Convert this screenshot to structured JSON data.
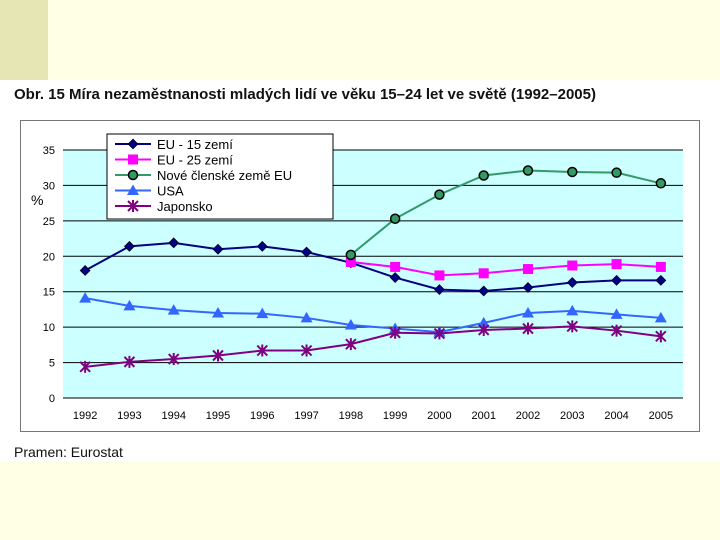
{
  "page": {
    "title": "Obr. 15 Míra nezaměstnanosti mladých lidí ve věku 15–24 let ve světě (1992–2005)",
    "source": "Pramen: Eurostat"
  },
  "colors": {
    "background": "#ffffe6",
    "accent": "#e6e6b4",
    "plot_bg": "#ccffff"
  },
  "chart_data": {
    "type": "line",
    "title": "Obr. 15 Míra nezaměstnanosti mladých lidí ve věku 15–24 let ve světě (1992–2005)",
    "xlabel": "",
    "ylabel": "%",
    "ylim": [
      0,
      35
    ],
    "yticks": [
      "0",
      "5",
      "10",
      "15",
      "20",
      "25",
      "30",
      "35"
    ],
    "grid": true,
    "legend_position": "top-left",
    "categories": [
      "1992",
      "1993",
      "1994",
      "1995",
      "1996",
      "1997",
      "1998",
      "1999",
      "2000",
      "2001",
      "2002",
      "2003",
      "2004",
      "2005"
    ],
    "series": [
      {
        "name": "EU - 15 zemí",
        "color": "#000080",
        "marker": "diamond",
        "values": [
          18.0,
          21.4,
          21.9,
          21.0,
          21.4,
          20.6,
          19.1,
          17.0,
          15.3,
          15.1,
          15.6,
          16.3,
          16.6,
          16.6
        ]
      },
      {
        "name": "EU - 25 zemí",
        "color": "#ff00ff",
        "marker": "square",
        "values": [
          null,
          null,
          null,
          null,
          null,
          null,
          19.2,
          18.5,
          17.3,
          17.6,
          18.2,
          18.7,
          18.9,
          18.5
        ]
      },
      {
        "name": "Nové členské země EU",
        "color": "#339966",
        "marker": "circle",
        "values": [
          null,
          null,
          null,
          null,
          null,
          null,
          20.2,
          25.3,
          28.7,
          31.4,
          32.1,
          31.9,
          31.8,
          30.3
        ]
      },
      {
        "name": "USA",
        "color": "#3366ff",
        "marker": "triangle",
        "values": [
          14.1,
          13.0,
          12.4,
          12.0,
          11.9,
          11.3,
          10.3,
          9.8,
          9.3,
          10.6,
          12.0,
          12.3,
          11.8,
          11.3
        ]
      },
      {
        "name": "Japonsko",
        "color": "#800080",
        "marker": "star",
        "values": [
          4.4,
          5.1,
          5.5,
          6.0,
          6.7,
          6.7,
          7.6,
          9.2,
          9.1,
          9.6,
          9.8,
          10.1,
          9.5,
          8.7
        ]
      }
    ]
  }
}
